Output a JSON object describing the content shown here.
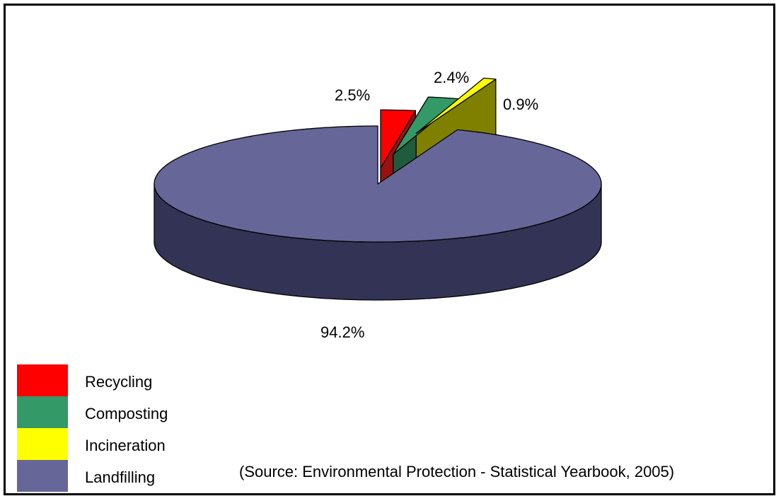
{
  "chart_data": {
    "type": "pie",
    "categories": [
      "Recycling",
      "Composting",
      "Incineration",
      "Landfilling"
    ],
    "values": [
      2.5,
      2.4,
      0.9,
      94.2
    ],
    "labels": [
      "2.5%",
      "2.4%",
      "0.9%",
      "94.2%"
    ],
    "colors": [
      "#ff0000",
      "#339966",
      "#ffff00",
      "#666699"
    ],
    "side_colors": [
      "#991111",
      "#1f5c3d",
      "#808000",
      "#333355"
    ],
    "legend_position": "bottom-left",
    "exploded": [
      "Recycling",
      "Composting",
      "Incineration"
    ],
    "style": "3d"
  },
  "legend": {
    "items": [
      {
        "label": "Recycling",
        "color": "#ff0000"
      },
      {
        "label": "Composting",
        "color": "#339966"
      },
      {
        "label": "Incineration",
        "color": "#ffff00"
      },
      {
        "label": "Landfilling",
        "color": "#666699"
      }
    ]
  },
  "source_note": "(Source: Environmental Protection - Statistical Yearbook, 2005)"
}
